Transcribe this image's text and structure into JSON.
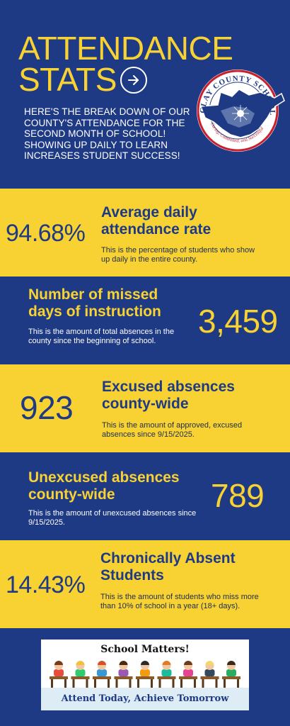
{
  "header": {
    "title_line1": "ATTENDANCE",
    "title_line2": "STATS",
    "intro": "HERE'S THE BREAK DOWN OF OUR COUNTY'S ATTENDANCE FOR THE SECOND MONTH OF SCHOOL!  SHOWING UP DAILY TO LEARN INCREASES STUDENT SUCCESS!",
    "logo_text_top": "CLAY COUNTY SCHOOLS",
    "logo_text_bottom": "Caring, Committed, and Successful"
  },
  "stats": [
    {
      "value": "94.68%",
      "heading_line1": "Average daily",
      "heading_line2": "attendance rate",
      "description": "This is the percentage of students who show up daily in the entire county."
    },
    {
      "value": "3,459",
      "heading_line1": "Number of missed",
      "heading_line2": "days of instruction",
      "description": "This is the amount of total absences in the county since the beginning of school."
    },
    {
      "value": "923",
      "heading_line1": "Excused absences",
      "heading_line2": "county-wide",
      "description": "This is the amount of approved, excused absences since 9/15/2025."
    },
    {
      "value": "789",
      "heading_line1": "Unexcused absences",
      "heading_line2": "county-wide",
      "description": "This is the amount of unexcused absences since 9/15/2025."
    },
    {
      "value": "14.43%",
      "heading_line1": "Chronically Absent",
      "heading_line2": "Students",
      "description": "This is the amount of students who miss more than 10% of school in a year (18+ days)."
    }
  ],
  "banner": {
    "top_text": "School Matters!",
    "bottom_text": "Attend Today, Achieve Tomorrow"
  },
  "colors": {
    "navy": "#1f3a84",
    "yellow": "#f8d232",
    "red": "#c8202c"
  }
}
